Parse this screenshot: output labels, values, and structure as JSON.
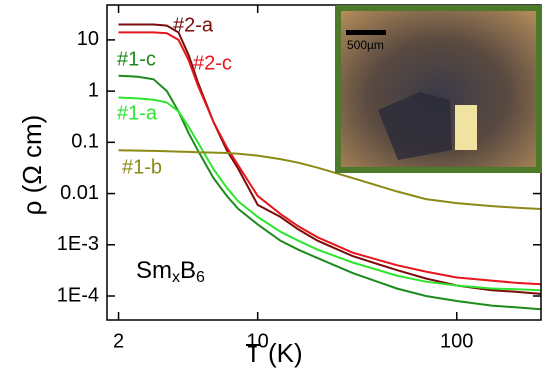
{
  "chart_data": {
    "type": "line",
    "xlabel": "T (K)",
    "ylabel": "ρ (Ω cm)",
    "annotation": {
      "parts": [
        "Sm",
        "x",
        "B",
        "6"
      ]
    },
    "inset": {
      "scale_label": "500µm"
    },
    "xscale": "log",
    "yscale": "log",
    "xlim": [
      1.75,
      265
    ],
    "ylim": [
      3.4e-05,
      48
    ],
    "xticks": [
      2,
      10,
      100
    ],
    "yticks": [
      10,
      1,
      0.1,
      0.01,
      {
        "value": 0.001,
        "label": "1E-3"
      },
      {
        "value": 0.0001,
        "label": "1E-4"
      }
    ],
    "x": [
      2,
      2.5,
      3,
      3.5,
      4,
      4.5,
      5,
      6,
      7,
      8,
      10,
      13,
      16,
      20,
      30,
      50,
      70,
      100,
      150,
      200,
      265
    ],
    "series": [
      {
        "name": "#2-a",
        "color": "#7a0c0c",
        "values": [
          20,
          20,
          20,
          19,
          14,
          5,
          1.5,
          0.25,
          0.07,
          0.03,
          0.006,
          0.0035,
          0.002,
          0.0012,
          0.0006,
          0.00032,
          0.00022,
          0.00016,
          0.00013,
          0.00012,
          0.00011
        ]
      },
      {
        "name": "#2-c",
        "color": "#e8161c",
        "values": [
          14,
          14,
          14,
          13.5,
          10,
          4,
          1.3,
          0.25,
          0.08,
          0.035,
          0.009,
          0.004,
          0.0023,
          0.0014,
          0.0007,
          0.0004,
          0.0003,
          0.00023,
          0.0002,
          0.00018,
          0.00017
        ]
      },
      {
        "name": "#1-c",
        "color": "#1e8a1e",
        "values": [
          2,
          1.9,
          1.7,
          1,
          0.4,
          0.15,
          0.07,
          0.02,
          0.009,
          0.005,
          0.0025,
          0.0012,
          0.0008,
          0.00055,
          0.00028,
          0.00014,
          0.0001,
          8e-05,
          6.5e-05,
          6e-05,
          5.5e-05
        ]
      },
      {
        "name": "#1-a",
        "color": "#2ee62e",
        "values": [
          0.75,
          0.72,
          0.68,
          0.6,
          0.4,
          0.2,
          0.1,
          0.03,
          0.013,
          0.007,
          0.0035,
          0.0018,
          0.0012,
          0.0008,
          0.00045,
          0.00025,
          0.00019,
          0.00016,
          0.00014,
          0.000135,
          0.00013
        ]
      },
      {
        "name": "#1-b",
        "color": "#8c8a14",
        "values": [
          0.07,
          0.069,
          0.068,
          0.067,
          0.066,
          0.065,
          0.064,
          0.063,
          0.062,
          0.06,
          0.055,
          0.047,
          0.04,
          0.032,
          0.02,
          0.011,
          0.0078,
          0.0065,
          0.0057,
          0.0053,
          0.005
        ]
      }
    ]
  }
}
